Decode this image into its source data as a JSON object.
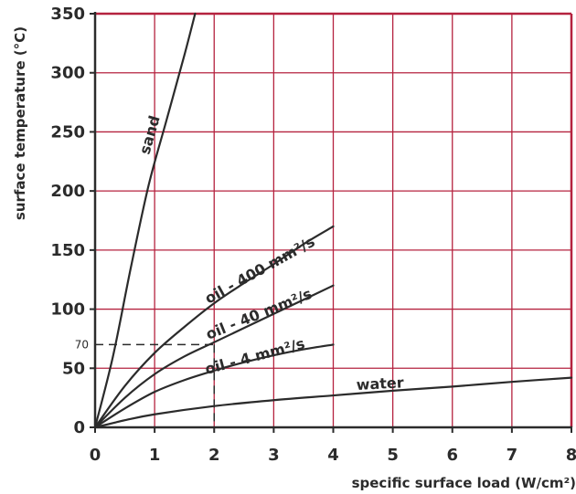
{
  "chart_data": {
    "type": "line",
    "xlabel": "specific surface load (W/cm²)",
    "ylabel": "surface temperature (°C)",
    "xlim": [
      0,
      8
    ],
    "ylim": [
      0,
      350
    ],
    "x_ticks": [
      0,
      1,
      2,
      3,
      4,
      5,
      6,
      7,
      8
    ],
    "y_ticks": [
      0,
      50,
      100,
      150,
      200,
      250,
      300,
      350
    ],
    "grid": true,
    "colors": {
      "grid": "#b5223f",
      "line": "#2b2b2b",
      "text": "#2b2b2b"
    },
    "series": [
      {
        "name": "sand",
        "points": [
          [
            0,
            0
          ],
          [
            0.3,
            60
          ],
          [
            0.6,
            135
          ],
          [
            0.9,
            205
          ],
          [
            1.2,
            260
          ],
          [
            1.5,
            315
          ],
          [
            1.68,
            350
          ]
        ]
      },
      {
        "name": "oil - 400 mm²/s",
        "points": [
          [
            0,
            0
          ],
          [
            0.5,
            35
          ],
          [
            1,
            63
          ],
          [
            1.5,
            85
          ],
          [
            2,
            105
          ],
          [
            2.5,
            122
          ],
          [
            3,
            138
          ],
          [
            3.5,
            155
          ],
          [
            4,
            170
          ]
        ]
      },
      {
        "name": "oil - 40 mm²/s",
        "points": [
          [
            0,
            0
          ],
          [
            0.5,
            25
          ],
          [
            1,
            45
          ],
          [
            1.5,
            60
          ],
          [
            2,
            72
          ],
          [
            2.5,
            84
          ],
          [
            3,
            96
          ],
          [
            3.5,
            108
          ],
          [
            4,
            120
          ]
        ]
      },
      {
        "name": "oil - 4 mm²/s",
        "points": [
          [
            0,
            0
          ],
          [
            0.5,
            16
          ],
          [
            1,
            30
          ],
          [
            1.5,
            40
          ],
          [
            2,
            48
          ],
          [
            2.5,
            55
          ],
          [
            3,
            61
          ],
          [
            3.5,
            66
          ],
          [
            4,
            70
          ]
        ]
      },
      {
        "name": "water",
        "points": [
          [
            0,
            0
          ],
          [
            0.5,
            6
          ],
          [
            1,
            11
          ],
          [
            2,
            18
          ],
          [
            3,
            23
          ],
          [
            4,
            27
          ],
          [
            5,
            31
          ],
          [
            6,
            34.5
          ],
          [
            7,
            38.5
          ],
          [
            8,
            42
          ]
        ]
      }
    ],
    "annotation": {
      "label": "70",
      "x": 2,
      "y": 70
    }
  }
}
